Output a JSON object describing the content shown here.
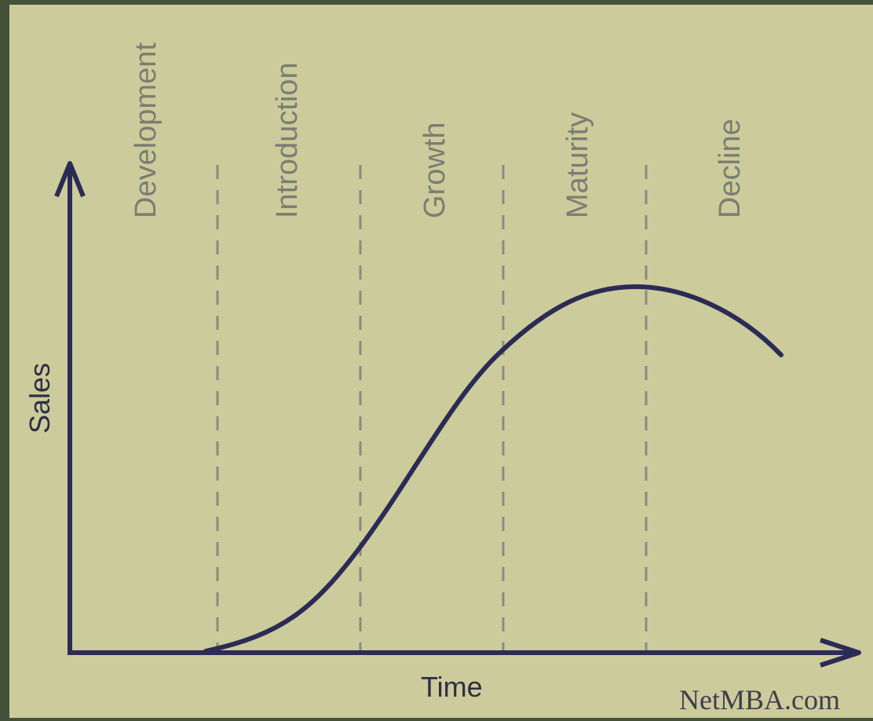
{
  "diagram": {
    "stages": [
      "Development",
      "Introduction",
      "Growth",
      "Maturity",
      "Decline"
    ],
    "x_axis_label": "Time",
    "y_axis_label": "Sales",
    "credit": "NetMBA.com",
    "colors": {
      "background": "#cccb9b",
      "border": "#45523a",
      "axis": "#2b2b55",
      "curve": "#2b2b55",
      "divider": "#8b8b80",
      "stage_text": "#7b7d73"
    }
  }
}
